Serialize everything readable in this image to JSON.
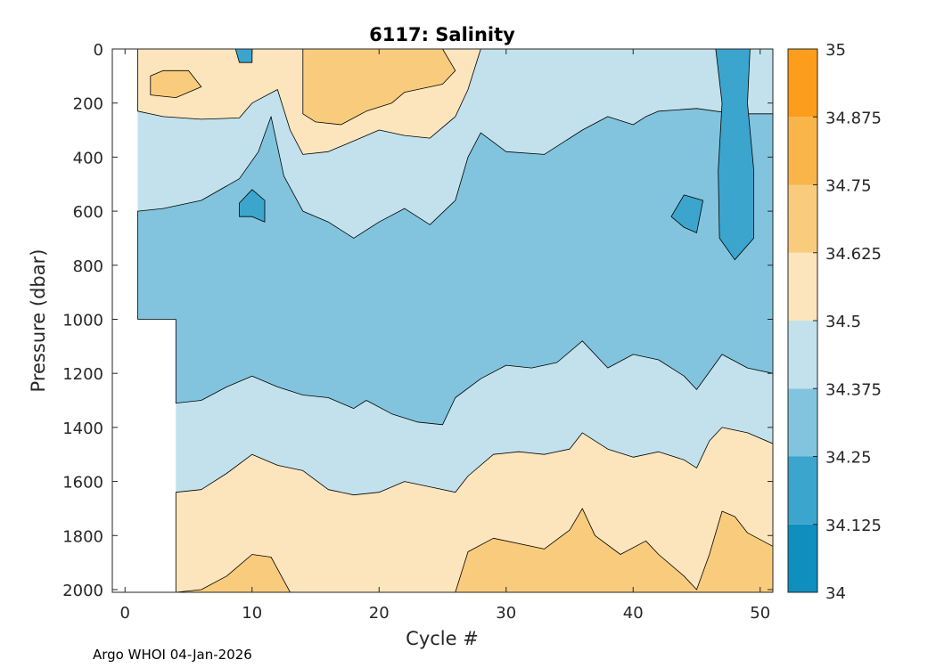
{
  "chart_data": {
    "type": "filled-contour",
    "title": "6117:  Salinity",
    "xlabel": "Cycle #",
    "ylabel": "Pressure (dbar)",
    "xlim": [
      -1,
      51
    ],
    "ylim": [
      0,
      2010
    ],
    "y_reversed": true,
    "xticks": [
      0,
      10,
      20,
      30,
      40,
      50
    ],
    "xtick_labels": [
      "0",
      "10",
      "20",
      "30",
      "40",
      "50"
    ],
    "yticks": [
      0,
      200,
      400,
      600,
      800,
      1000,
      1200,
      1400,
      1600,
      1800,
      2000
    ],
    "ytick_labels": [
      "0",
      "200",
      "400",
      "600",
      "800",
      "1000",
      "1200",
      "1400",
      "1600",
      "1800",
      "2000"
    ],
    "colorbar": {
      "levels": [
        34,
        34.125,
        34.25,
        34.375,
        34.5,
        34.625,
        34.75,
        34.875,
        35
      ],
      "labels": [
        "34",
        "34.125",
        "34.25",
        "34.375",
        "34.5",
        "34.625",
        "34.75",
        "34.875",
        "35"
      ],
      "colors": [
        "#0f8fbd",
        "#3ca5cd",
        "#82c4de",
        "#c2e1ec",
        "#fce5bd",
        "#f9cc7d",
        "#f9b44a",
        "#fc9d1b"
      ]
    },
    "regions": [
      {
        "name": "deep-fresh-region",
        "level_index": 2,
        "boundary": [
          [
            1,
            600
          ],
          [
            3,
            590
          ],
          [
            6,
            560
          ],
          [
            9,
            480
          ],
          [
            10.5,
            380
          ],
          [
            11.5,
            250
          ],
          [
            12.5,
            470
          ],
          [
            14,
            600
          ],
          [
            16,
            640
          ],
          [
            18,
            700
          ],
          [
            20,
            640
          ],
          [
            22,
            590
          ],
          [
            24,
            650
          ],
          [
            26,
            560
          ],
          [
            27,
            400
          ],
          [
            28,
            310
          ],
          [
            30,
            380
          ],
          [
            33,
            390
          ],
          [
            36,
            300
          ],
          [
            38,
            250
          ],
          [
            40,
            280
          ],
          [
            41,
            250
          ],
          [
            42,
            230
          ],
          [
            45,
            220
          ],
          [
            48,
            240
          ],
          [
            51,
            240
          ],
          [
            51,
            1200
          ],
          [
            49,
            1180
          ],
          [
            47,
            1130
          ],
          [
            45,
            1260
          ],
          [
            44,
            1210
          ],
          [
            42,
            1150
          ],
          [
            40,
            1130
          ],
          [
            38,
            1180
          ],
          [
            36,
            1080
          ],
          [
            34,
            1160
          ],
          [
            32,
            1180
          ],
          [
            30,
            1170
          ],
          [
            28,
            1220
          ],
          [
            26,
            1290
          ],
          [
            25,
            1390
          ],
          [
            23,
            1380
          ],
          [
            21,
            1350
          ],
          [
            19,
            1300
          ],
          [
            18,
            1330
          ],
          [
            16,
            1290
          ],
          [
            14,
            1280
          ],
          [
            12,
            1250
          ],
          [
            10,
            1210
          ],
          [
            8,
            1250
          ],
          [
            6,
            1300
          ],
          [
            4,
            1310
          ],
          [
            4,
            1000
          ],
          [
            1,
            1000
          ]
        ]
      },
      {
        "name": "mid-warm-layer",
        "level_index": 4,
        "boundary": [
          [
            4,
            1640
          ],
          [
            6,
            1630
          ],
          [
            8,
            1570
          ],
          [
            10,
            1500
          ],
          [
            12,
            1540
          ],
          [
            14,
            1560
          ],
          [
            16,
            1630
          ],
          [
            18,
            1650
          ],
          [
            20,
            1640
          ],
          [
            22,
            1600
          ],
          [
            24,
            1620
          ],
          [
            26,
            1640
          ],
          [
            27,
            1580
          ],
          [
            29,
            1500
          ],
          [
            31,
            1490
          ],
          [
            33,
            1500
          ],
          [
            35,
            1480
          ],
          [
            36,
            1420
          ],
          [
            38,
            1480
          ],
          [
            40,
            1510
          ],
          [
            42,
            1490
          ],
          [
            44,
            1520
          ],
          [
            45,
            1550
          ],
          [
            46,
            1450
          ],
          [
            47,
            1400
          ],
          [
            49,
            1420
          ],
          [
            51,
            1460
          ],
          [
            51,
            2010
          ],
          [
            4,
            2010
          ]
        ]
      },
      {
        "name": "bottom-salty-region",
        "level_index": 5,
        "boundary": [
          [
            4,
            2010
          ],
          [
            6,
            2000
          ],
          [
            8,
            1950
          ],
          [
            10,
            1870
          ],
          [
            11.5,
            1880
          ],
          [
            13,
            2010
          ],
          [
            26,
            2010
          ],
          [
            27,
            1860
          ],
          [
            29,
            1810
          ],
          [
            33,
            1850
          ],
          [
            35,
            1780
          ],
          [
            36,
            1700
          ],
          [
            37,
            1800
          ],
          [
            39,
            1870
          ],
          [
            41,
            1820
          ],
          [
            42,
            1870
          ],
          [
            44,
            1950
          ],
          [
            45,
            2000
          ],
          [
            46,
            1870
          ],
          [
            47,
            1710
          ],
          [
            48,
            1730
          ],
          [
            49,
            1790
          ],
          [
            51,
            1840
          ],
          [
            51,
            2010
          ]
        ]
      },
      {
        "name": "surface-warm-patch",
        "level_index": 4,
        "boundary": [
          [
            1,
            0
          ],
          [
            1,
            230
          ],
          [
            3,
            250
          ],
          [
            6,
            260
          ],
          [
            9,
            255
          ],
          [
            10,
            200
          ],
          [
            12,
            150
          ],
          [
            13,
            300
          ],
          [
            14,
            390
          ],
          [
            16,
            380
          ],
          [
            18,
            340
          ],
          [
            20,
            300
          ],
          [
            22,
            320
          ],
          [
            24,
            330
          ],
          [
            26,
            250
          ],
          [
            27,
            150
          ],
          [
            28,
            0
          ]
        ]
      },
      {
        "name": "surface-salty-patch",
        "level_index": 5,
        "boundary": [
          [
            14,
            0
          ],
          [
            14,
            240
          ],
          [
            15,
            270
          ],
          [
            17,
            280
          ],
          [
            19,
            230
          ],
          [
            21,
            200
          ],
          [
            22,
            160
          ],
          [
            25,
            130
          ],
          [
            26,
            80
          ],
          [
            25,
            0
          ]
        ]
      },
      {
        "name": "left-salty-blob",
        "level_index": 5,
        "boundary": [
          [
            2,
            100
          ],
          [
            3,
            80
          ],
          [
            5,
            80
          ],
          [
            6,
            140
          ],
          [
            4,
            180
          ],
          [
            2,
            170
          ]
        ]
      },
      {
        "name": "left-fresh-spike",
        "level_index": 1,
        "boundary": [
          [
            9,
            570
          ],
          [
            10,
            520
          ],
          [
            11,
            560
          ],
          [
            11,
            640
          ],
          [
            10,
            620
          ],
          [
            9,
            620
          ]
        ]
      },
      {
        "name": "fresh-column-48",
        "level_index": 1,
        "boundary": [
          [
            46.5,
            0
          ],
          [
            47,
            200
          ],
          [
            46.7,
            450
          ],
          [
            46.8,
            700
          ],
          [
            48,
            780
          ],
          [
            49.5,
            700
          ],
          [
            49.5,
            450
          ],
          [
            49,
            200
          ],
          [
            49.2,
            0
          ]
        ]
      },
      {
        "name": "fresh-blob-44",
        "level_index": 1,
        "boundary": [
          [
            43,
            620
          ],
          [
            44,
            540
          ],
          [
            45.5,
            560
          ],
          [
            45,
            680
          ],
          [
            44,
            660
          ]
        ]
      },
      {
        "name": "fresh-column-top-8",
        "level_index": 1,
        "boundary": [
          [
            8.7,
            0
          ],
          [
            9,
            50
          ],
          [
            10,
            50
          ],
          [
            10,
            0
          ]
        ]
      }
    ],
    "footer": "Argo WHOI 04-Jan-2026"
  }
}
